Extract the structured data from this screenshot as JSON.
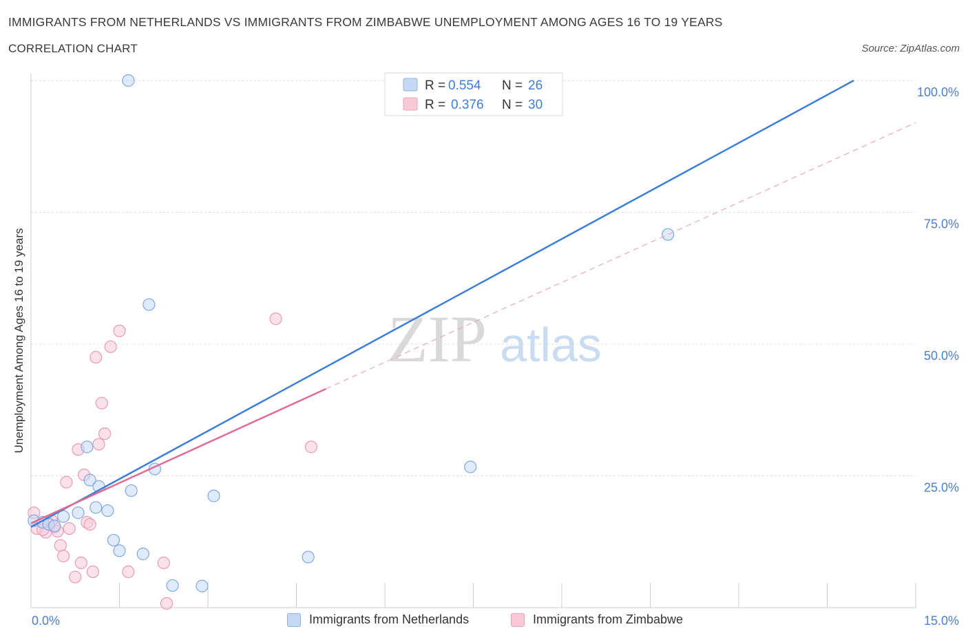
{
  "header": {
    "title": "IMMIGRANTS FROM NETHERLANDS VS IMMIGRANTS FROM ZIMBABWE UNEMPLOYMENT AMONG AGES 16 TO 19 YEARS",
    "subtitle": "CORRELATION CHART",
    "source": "Source: ZipAtlas.com"
  },
  "watermark": {
    "zip": "ZIP",
    "atlas": "atlas"
  },
  "colors": {
    "blue": "#3b7dd8",
    "blue_fill": "#c5d9f5",
    "pink": "#e06a94",
    "pink_fill": "#f8cad8",
    "tick_label": "#4a7fcf"
  },
  "legend_top": {
    "rows": [
      {
        "r_label": "R =",
        "r_value": "0.554",
        "n_label": "N =",
        "n_value": "26"
      },
      {
        "r_label": "R =",
        "r_value": "0.376",
        "n_label": "N =",
        "n_value": "30"
      }
    ]
  },
  "chart_data": {
    "type": "scatter",
    "title": "IMMIGRANTS FROM NETHERLANDS VS IMMIGRANTS FROM ZIMBABWE UNEMPLOYMENT AMONG AGES 16 TO 19 YEARS",
    "xlabel": "",
    "ylabel": "Unemployment Among Ages 16 to 19 years",
    "xlim": [
      0,
      15
    ],
    "ylim": [
      0,
      100
    ],
    "x_tick_labels": [
      "0.0%",
      "15.0%"
    ],
    "y_ticks": [
      25,
      50,
      75,
      100
    ],
    "y_tick_labels": [
      "25.0%",
      "50.0%",
      "75.0%",
      "100.0%"
    ],
    "grid": true,
    "legend_placement": "top-center",
    "series": [
      {
        "name": "Immigrants from Netherlands",
        "color": "#3b7dd8",
        "r": 0.554,
        "n": 26,
        "trend": {
          "x": [
            0,
            13.95
          ],
          "y": [
            15.3,
            100
          ]
        },
        "points": [
          [
            0.05,
            16.5
          ],
          [
            0.2,
            16.2
          ],
          [
            0.3,
            15.8
          ],
          [
            0.4,
            15.5
          ],
          [
            0.55,
            17.3
          ],
          [
            0.8,
            18.0
          ],
          [
            0.95,
            30.5
          ],
          [
            1.0,
            24.2
          ],
          [
            1.1,
            19.0
          ],
          [
            1.15,
            23.0
          ],
          [
            1.3,
            18.4
          ],
          [
            1.4,
            12.8
          ],
          [
            1.5,
            10.8
          ],
          [
            1.65,
            100
          ],
          [
            1.7,
            22.2
          ],
          [
            1.9,
            10.2
          ],
          [
            2.0,
            57.5
          ],
          [
            2.1,
            26.3
          ],
          [
            2.4,
            4.2
          ],
          [
            2.9,
            4.1
          ],
          [
            3.1,
            21.2
          ],
          [
            4.7,
            9.6
          ],
          [
            6.5,
            100
          ],
          [
            7.45,
            26.7
          ],
          [
            10.8,
            70.8
          ],
          [
            6.55,
            100
          ]
        ]
      },
      {
        "name": "Immigrants from Zimbabwe",
        "color": "#e06a94",
        "r": 0.376,
        "n": 30,
        "trend": {
          "x": [
            0,
            5.0
          ],
          "y": [
            16.0,
            41.5
          ]
        },
        "trend_ext": {
          "x": [
            5.0,
            15.0
          ],
          "y": [
            41.5,
            92.0
          ]
        },
        "points": [
          [
            0.05,
            18.0
          ],
          [
            0.1,
            15.0
          ],
          [
            0.25,
            14.3
          ],
          [
            0.3,
            16.0
          ],
          [
            0.4,
            15.3
          ],
          [
            0.45,
            14.5
          ],
          [
            0.5,
            11.8
          ],
          [
            0.55,
            9.8
          ],
          [
            0.65,
            15.0
          ],
          [
            0.75,
            5.8
          ],
          [
            0.8,
            30.0
          ],
          [
            0.85,
            8.5
          ],
          [
            0.9,
            25.2
          ],
          [
            0.95,
            16.2
          ],
          [
            1.05,
            6.8
          ],
          [
            1.1,
            47.5
          ],
          [
            1.15,
            31.0
          ],
          [
            1.2,
            38.8
          ],
          [
            1.25,
            33.0
          ],
          [
            1.35,
            49.5
          ],
          [
            1.5,
            52.5
          ],
          [
            1.65,
            6.8
          ],
          [
            2.25,
            8.5
          ],
          [
            2.3,
            0.8
          ],
          [
            4.15,
            54.8
          ],
          [
            4.75,
            30.5
          ],
          [
            0.6,
            23.8
          ],
          [
            0.35,
            16.5
          ],
          [
            0.2,
            14.8
          ],
          [
            1.0,
            15.8
          ]
        ]
      }
    ]
  },
  "legend_bottom": {
    "items": [
      {
        "label": "Immigrants from Netherlands"
      },
      {
        "label": "Immigrants from Zimbabwe"
      }
    ]
  }
}
